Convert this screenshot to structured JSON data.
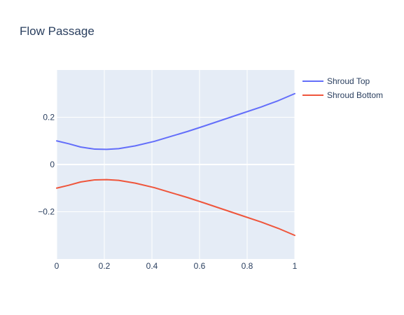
{
  "chart_data": {
    "type": "line",
    "title": "Flow Passage",
    "xlabel": "",
    "ylabel": "",
    "xlim": [
      0,
      1
    ],
    "ylim": [
      -0.4,
      0.4
    ],
    "xticks": [
      0,
      0.2,
      0.4,
      0.6,
      0.8,
      1
    ],
    "xtick_labels": [
      "0",
      "0.2",
      "0.4",
      "0.6",
      "0.8",
      "1"
    ],
    "yticks": [
      -0.2,
      0,
      0.2
    ],
    "ytick_labels": [
      "−0.2",
      "0",
      "0.2"
    ],
    "grid": true,
    "legend_position": "top-right",
    "background_color": "#e5ecf6",
    "series": [
      {
        "name": "Shroud Top",
        "color": "#636efa",
        "x": [
          0,
          0.05,
          0.1,
          0.16,
          0.21,
          0.26,
          0.33,
          0.41,
          0.48,
          0.55,
          0.62,
          0.7,
          0.78,
          0.86,
          0.93,
          1
        ],
        "y": [
          0.1,
          0.088,
          0.074,
          0.065,
          0.064,
          0.067,
          0.079,
          0.098,
          0.119,
          0.14,
          0.163,
          0.19,
          0.217,
          0.244,
          0.27,
          0.3
        ]
      },
      {
        "name": "Shroud Bottom",
        "color": "#ef553b",
        "x": [
          0,
          0.05,
          0.1,
          0.16,
          0.21,
          0.26,
          0.33,
          0.41,
          0.48,
          0.55,
          0.62,
          0.7,
          0.78,
          0.86,
          0.93,
          1
        ],
        "y": [
          -0.1,
          -0.088,
          -0.074,
          -0.065,
          -0.064,
          -0.067,
          -0.079,
          -0.098,
          -0.119,
          -0.14,
          -0.163,
          -0.19,
          -0.217,
          -0.244,
          -0.27,
          -0.3
        ]
      }
    ]
  }
}
